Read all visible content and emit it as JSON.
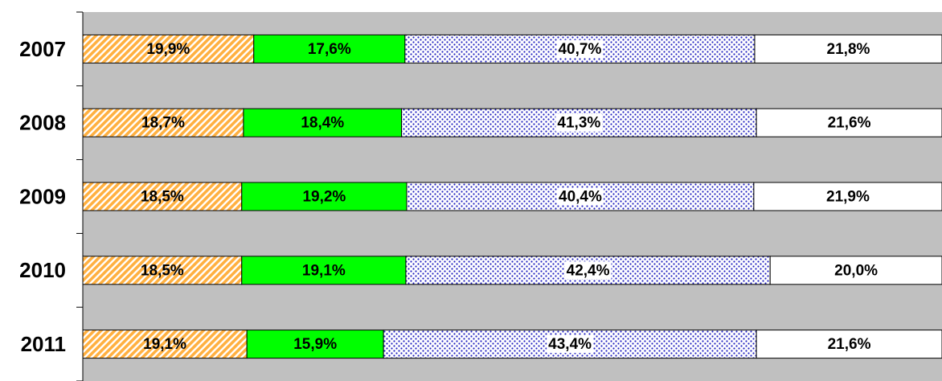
{
  "chart_data": {
    "type": "stacked-bar-horizontal",
    "categories": [
      "2007",
      "2008",
      "2009",
      "2010",
      "2011"
    ],
    "series": [
      {
        "color": "#ffb040",
        "pattern": "hatch",
        "values": [
          19.9,
          18.7,
          18.5,
          18.5,
          19.1
        ],
        "value_labels": [
          "19,9%",
          "18,7%",
          "18,5%",
          "18,5%",
          "19,1%"
        ]
      },
      {
        "color": "#00ff00",
        "pattern": "solid",
        "values": [
          17.6,
          18.4,
          19.2,
          19.1,
          15.9
        ],
        "value_labels": [
          "17,6%",
          "18,4%",
          "19,2%",
          "19,1%",
          "15,9%"
        ]
      },
      {
        "color": "#2020c0",
        "pattern": "dots",
        "values": [
          40.7,
          41.3,
          40.4,
          42.4,
          43.4
        ],
        "value_labels": [
          "40,7%",
          "41,3%",
          "40,4%",
          "42,4%",
          "43,4%"
        ]
      },
      {
        "color": "#ffffff",
        "pattern": "solid",
        "values": [
          21.8,
          21.6,
          21.9,
          20.0,
          21.6
        ],
        "value_labels": [
          "21,8%",
          "21,6%",
          "21,9%",
          "20,0%",
          "21,6%"
        ]
      }
    ],
    "plot_background": "#c0c0c0"
  }
}
